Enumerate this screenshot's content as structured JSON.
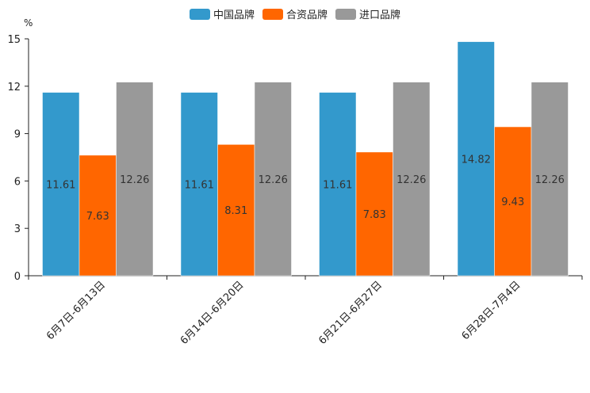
{
  "chart_data": {
    "type": "bar",
    "title": "",
    "unit": "%",
    "categories": [
      "6月7日-6月13日",
      "6月14日-6月20日",
      "6月21日-6月27日",
      "6月28日-7月4日"
    ],
    "series": [
      {
        "name": "中国品牌",
        "color": "#3399cc",
        "values": [
          11.61,
          11.61,
          11.61,
          14.82
        ]
      },
      {
        "name": "合资品牌",
        "color": "#ff6600",
        "values": [
          7.63,
          8.31,
          7.83,
          9.43
        ]
      },
      {
        "name": "进口品牌",
        "color": "#999999",
        "values": [
          12.26,
          12.26,
          12.26,
          12.26
        ]
      }
    ],
    "ylim": [
      0,
      15
    ],
    "yticks": [
      "0",
      "3",
      "6",
      "9",
      "12",
      "15"
    ],
    "legend_position": "top-center",
    "grid": false
  }
}
